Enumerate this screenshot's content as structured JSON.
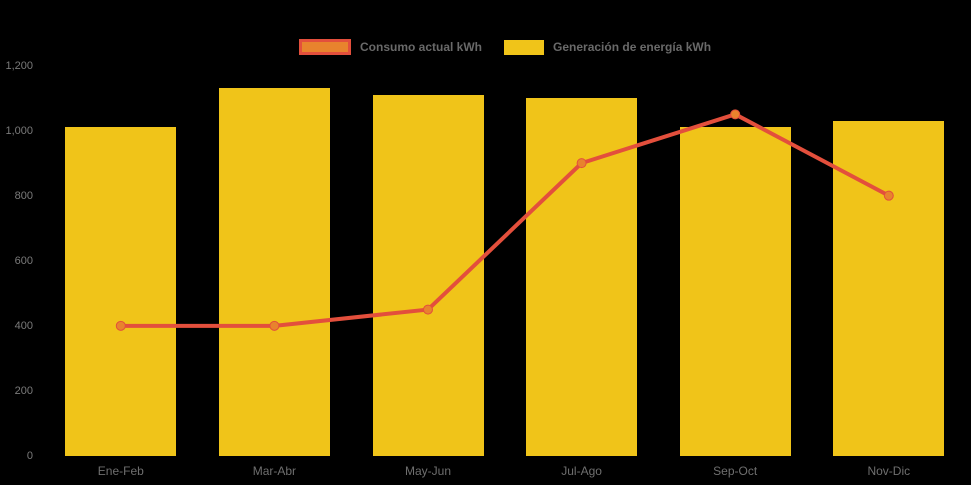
{
  "chart_data": {
    "type": "combo",
    "categories": [
      "Ene-Feb",
      "Mar-Abr",
      "May-Jun",
      "Jul-Ago",
      "Sep-Oct",
      "Nov-Dic"
    ],
    "series": [
      {
        "name": "Consumo actual kWh",
        "type": "line",
        "values": [
          400,
          400,
          450,
          900,
          1050,
          800
        ],
        "color": "#e34f3c",
        "marker_color": "#e8832d"
      },
      {
        "name": "Generación de energía kWh",
        "type": "bar",
        "values": [
          1010,
          1130,
          1110,
          1100,
          1010,
          1030
        ],
        "color": "#f0c419"
      }
    ],
    "ylim": [
      0,
      1200
    ],
    "yticks": [
      0,
      200,
      400,
      600,
      800,
      1000,
      1200
    ],
    "ytick_labels": [
      "0",
      "200",
      "400",
      "600",
      "800",
      "1,000",
      "1,200"
    ],
    "grid": false,
    "legend_position": "top",
    "background": "#000000",
    "axis_text_color": "#7a7a7a"
  }
}
